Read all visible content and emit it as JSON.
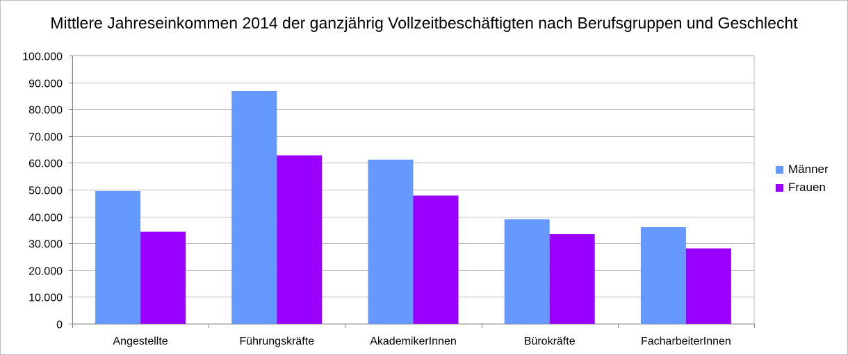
{
  "chart_data": {
    "type": "bar",
    "title": "Mittlere Jahreseinkommen 2014 der ganzjährig Vollzeitbeschäftigten nach Berufsgruppen und Geschlecht",
    "categories": [
      "Angestellte",
      "Führungskräfte",
      "AkademikerInnen",
      "Bürokräfte",
      "FacharbeiterInnen"
    ],
    "series": [
      {
        "name": "Männer",
        "color": "#6699ff",
        "values": [
          49500,
          86800,
          61200,
          39000,
          36000
        ]
      },
      {
        "name": "Frauen",
        "color": "#9900ff",
        "values": [
          34300,
          62800,
          47800,
          33400,
          28100
        ]
      }
    ],
    "ylim": [
      0,
      100000
    ],
    "yticks": [
      0,
      10000,
      20000,
      30000,
      40000,
      50000,
      60000,
      70000,
      80000,
      90000,
      100000
    ],
    "ytick_labels": [
      "0",
      "10.000",
      "20.000",
      "30.000",
      "40.000",
      "50.000",
      "60.000",
      "70.000",
      "80.000",
      "90.000",
      "100.000"
    ],
    "xlabel": "",
    "ylabel": "",
    "grid": true,
    "legend_position": "right"
  }
}
